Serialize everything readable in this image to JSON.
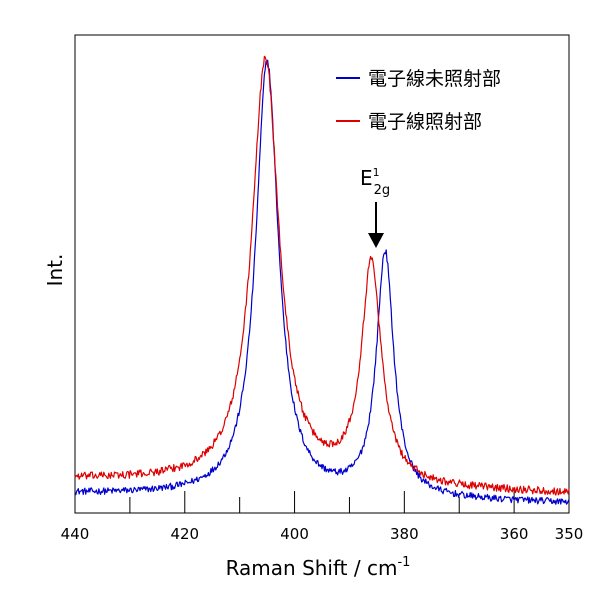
{
  "chart_data": {
    "type": "line",
    "xlabel": "Raman Shift / cm",
    "xlabel_superscript": "-1",
    "ylabel": "Int.",
    "xlim": [
      440,
      350
    ],
    "ylim": [
      0,
      1
    ],
    "x_ticks": [
      440,
      420,
      400,
      380,
      360,
      350
    ],
    "x_minor_ticks": [
      430,
      410,
      390,
      370
    ],
    "yticks_shown": false,
    "grid": false,
    "legend_position": "top-right",
    "annotation": {
      "base": "E",
      "superscript": "1",
      "subscript": "2g",
      "points_to_x": 386
    },
    "series": [
      {
        "name": "電子線未照射部",
        "color": "#0000cc",
        "peaks": [
          {
            "center": 405.0,
            "height": 0.91,
            "width": 2.5
          },
          {
            "center": 383.5,
            "height": 0.51,
            "width": 1.9
          }
        ],
        "baseline_left": 0.04,
        "baseline_right": 0.02,
        "noise": 0.007
      },
      {
        "name": "電子線照射部",
        "color": "#dd0000",
        "peaks": [
          {
            "center": 405.3,
            "height": 0.89,
            "width": 3.0
          },
          {
            "center": 386.0,
            "height": 0.46,
            "width": 2.2
          }
        ],
        "baseline_left": 0.07,
        "baseline_right": 0.04,
        "noise": 0.008
      }
    ]
  }
}
